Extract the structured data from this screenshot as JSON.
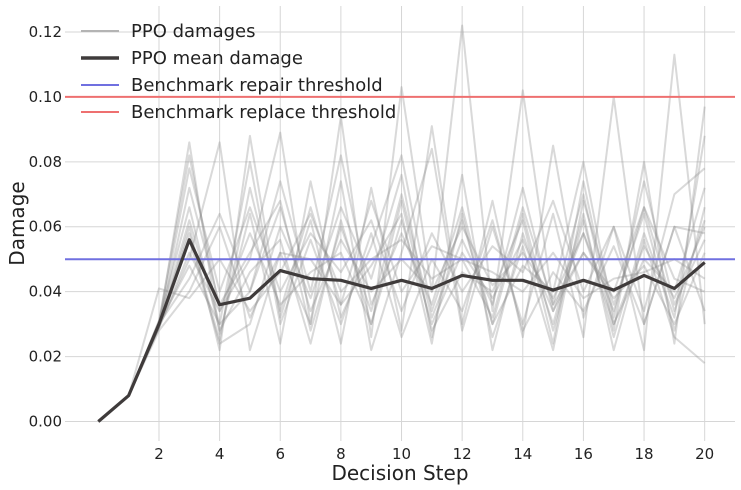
{
  "chart_data": {
    "type": "line",
    "title": "",
    "xlabel": "Decision Step",
    "ylabel": "Damage",
    "xlim": [
      -1.1,
      21
    ],
    "ylim": [
      -0.006,
      0.128
    ],
    "xticks": [
      2,
      4,
      6,
      8,
      10,
      12,
      14,
      16,
      18,
      20
    ],
    "yticks": [
      0.0,
      0.02,
      0.04,
      0.06,
      0.08,
      0.1,
      0.12
    ],
    "ytick_labels": [
      "0.00",
      "0.02",
      "0.04",
      "0.06",
      "0.08",
      "0.10",
      "0.12"
    ],
    "grid": true,
    "legend_position": "top-left",
    "legend": [
      {
        "label": "PPO damages",
        "color": "#b4b4b4",
        "width": 2
      },
      {
        "label": "PPO mean damage",
        "color": "#3f3b3b",
        "width": 3.5
      },
      {
        "label": "Benchmark repair threshold",
        "color": "#7070e0",
        "width": 2
      },
      {
        "label": "Benchmark replace threshold",
        "color": "#ee7070",
        "width": 2
      }
    ],
    "colors": {
      "damages": "#8a8a8a",
      "mean": "#3f3b3b",
      "repair": "#7070e0",
      "replace": "#ee7070"
    },
    "x": [
      0,
      1,
      2,
      3,
      4,
      5,
      6,
      7,
      8,
      9,
      10,
      11,
      12,
      13,
      14,
      15,
      16,
      17,
      18,
      19,
      20
    ],
    "mean_damage": [
      0.0,
      0.008,
      0.03,
      0.056,
      0.036,
      0.038,
      0.0465,
      0.044,
      0.0435,
      0.041,
      0.0435,
      0.041,
      0.045,
      0.0435,
      0.0435,
      0.0405,
      0.0435,
      0.0405,
      0.045,
      0.041,
      0.049
    ],
    "repair_threshold": 0.05,
    "replace_threshold": 0.1,
    "damage_series": [
      [
        0.0,
        0.008,
        0.03,
        0.086,
        0.027,
        0.064,
        0.024,
        0.074,
        0.032,
        0.054,
        0.082,
        0.034,
        0.062,
        0.03,
        0.064,
        0.028,
        0.062,
        0.026,
        0.058,
        0.032,
        0.088
      ],
      [
        0.0,
        0.008,
        0.029,
        0.06,
        0.022,
        0.088,
        0.032,
        0.062,
        0.024,
        0.072,
        0.028,
        0.091,
        0.03,
        0.068,
        0.026,
        0.085,
        0.032,
        0.06,
        0.022,
        0.113,
        0.03
      ],
      [
        0.0,
        0.008,
        0.031,
        0.082,
        0.034,
        0.05,
        0.089,
        0.03,
        0.094,
        0.026,
        0.103,
        0.04,
        0.122,
        0.034,
        0.102,
        0.036,
        0.07,
        0.028,
        0.08,
        0.024,
        0.097
      ],
      [
        0.0,
        0.008,
        0.03,
        0.058,
        0.025,
        0.072,
        0.034,
        0.066,
        0.036,
        0.048,
        0.064,
        0.024,
        0.076,
        0.022,
        0.058,
        0.03,
        0.064,
        0.022,
        0.056,
        0.026,
        0.018
      ],
      [
        0.0,
        0.008,
        0.029,
        0.072,
        0.036,
        0.052,
        0.068,
        0.028,
        0.06,
        0.034,
        0.07,
        0.032,
        0.056,
        0.036,
        0.072,
        0.034,
        0.058,
        0.034,
        0.066,
        0.034,
        0.062
      ],
      [
        0.0,
        0.008,
        0.03,
        0.048,
        0.03,
        0.04,
        0.074,
        0.04,
        0.082,
        0.036,
        0.058,
        0.036,
        0.066,
        0.03,
        0.048,
        0.04,
        0.08,
        0.032,
        0.074,
        0.036,
        0.056
      ],
      [
        0.0,
        0.008,
        0.029,
        0.05,
        0.086,
        0.022,
        0.052,
        0.03,
        0.074,
        0.022,
        0.052,
        0.084,
        0.028,
        0.06,
        0.03,
        0.064,
        0.026,
        0.1,
        0.03,
        0.06,
        0.034
      ],
      [
        0.0,
        0.008,
        0.031,
        0.066,
        0.028,
        0.046,
        0.056,
        0.024,
        0.062,
        0.03,
        0.068,
        0.028,
        0.046,
        0.04,
        0.062,
        0.024,
        0.074,
        0.03,
        0.05,
        0.04,
        0.072
      ],
      [
        0.0,
        0.008,
        0.03,
        0.078,
        0.04,
        0.066,
        0.04,
        0.058,
        0.046,
        0.062,
        0.034,
        0.058,
        0.04,
        0.054,
        0.046,
        0.068,
        0.04,
        0.06,
        0.034,
        0.07,
        0.078
      ],
      [
        0.0,
        0.008,
        0.028,
        0.04,
        0.06,
        0.032,
        0.052,
        0.05,
        0.036,
        0.068,
        0.04,
        0.054,
        0.05,
        0.032,
        0.066,
        0.036,
        0.052,
        0.04,
        0.066,
        0.044,
        0.04
      ],
      [
        0.0,
        0.008,
        0.03,
        0.062,
        0.03,
        0.08,
        0.03,
        0.056,
        0.03,
        0.058,
        0.026,
        0.05,
        0.034,
        0.062,
        0.028,
        0.046,
        0.034,
        0.054,
        0.03,
        0.06,
        0.058
      ],
      [
        0.0,
        0.008,
        0.029,
        0.056,
        0.024,
        0.03,
        0.06,
        0.038,
        0.066,
        0.044,
        0.076,
        0.026,
        0.064,
        0.026,
        0.054,
        0.022,
        0.068,
        0.036,
        0.064,
        0.028,
        0.066
      ],
      [
        0.0,
        0.008,
        0.041,
        0.038,
        0.05,
        0.034,
        0.046,
        0.064,
        0.04,
        0.05,
        0.056,
        0.044,
        0.05,
        0.046,
        0.04,
        0.052,
        0.038,
        0.044,
        0.046,
        0.05,
        0.044
      ],
      [
        0.0,
        0.008,
        0.03,
        0.044,
        0.064,
        0.04,
        0.066,
        0.034,
        0.056,
        0.04,
        0.05,
        0.04,
        0.06,
        0.042,
        0.052,
        0.038,
        0.058,
        0.03,
        0.054,
        0.038,
        0.06
      ],
      [
        0.0,
        0.008,
        0.029,
        0.052,
        0.034,
        0.058,
        0.036,
        0.046,
        0.052,
        0.03,
        0.062,
        0.03,
        0.052,
        0.038,
        0.056,
        0.034,
        0.052,
        0.038,
        0.048,
        0.03,
        0.052
      ]
    ]
  }
}
